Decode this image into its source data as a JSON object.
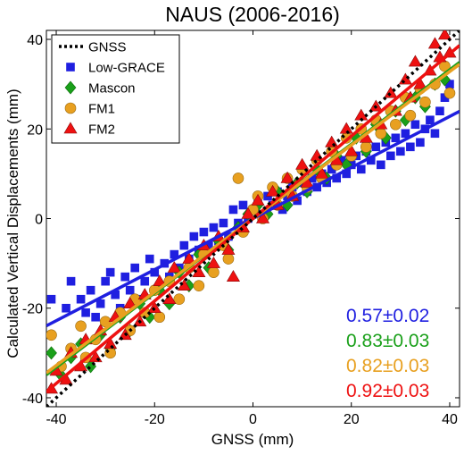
{
  "chart_data": {
    "type": "scatter",
    "title": "NAUS (2006-2016)",
    "xlabel": "GNSS (mm)",
    "ylabel": "Calculated Vertical Displacements (mm)",
    "xlim": [
      -42,
      42
    ],
    "ylim": [
      -42,
      42
    ],
    "xticks": [
      -40,
      -20,
      0,
      20,
      40
    ],
    "yticks": [
      -40,
      -20,
      0,
      20,
      40
    ],
    "xtick_labels": [
      "-40",
      "-20",
      "0",
      "20",
      "40"
    ],
    "ytick_labels": [
      "-40",
      "-20",
      "0",
      "20",
      "40"
    ],
    "grid": false,
    "legend_position": "top-left",
    "legend": [
      {
        "label": "GNSS",
        "marker": "dotted-line",
        "color": "#000000"
      },
      {
        "label": "Low-GRACE",
        "marker": "square",
        "color": "#1f1fe0"
      },
      {
        "label": "Mascon",
        "marker": "diamond",
        "color": "#1aa01a"
      },
      {
        "label": "FM1",
        "marker": "circle",
        "color": "#e8a020"
      },
      {
        "label": "FM2",
        "marker": "triangle",
        "color": "#ee1111"
      }
    ],
    "reference_line": {
      "name": "GNSS",
      "slope": 1,
      "intercept": 0,
      "color": "#000000"
    },
    "series": [
      {
        "name": "Low-GRACE",
        "marker": "square",
        "color": "#1f1fe0",
        "edge": "#1f1fe0",
        "fit": {
          "slope": 0.57,
          "intercept": 0
        },
        "points": [
          [
            -41,
            -18
          ],
          [
            -38,
            -20
          ],
          [
            -37,
            -14
          ],
          [
            -35,
            -18
          ],
          [
            -34,
            -21
          ],
          [
            -33,
            -16
          ],
          [
            -32,
            -22
          ],
          [
            -31,
            -19
          ],
          [
            -30,
            -14
          ],
          [
            -29,
            -12
          ],
          [
            -28,
            -17
          ],
          [
            -27,
            -20
          ],
          [
            -26,
            -13
          ],
          [
            -25,
            -16
          ],
          [
            -24,
            -11
          ],
          [
            -23,
            -18
          ],
          [
            -22,
            -14
          ],
          [
            -21,
            -9
          ],
          [
            -20,
            -12
          ],
          [
            -19,
            -15
          ],
          [
            -18,
            -10
          ],
          [
            -17,
            -13
          ],
          [
            -16,
            -8
          ],
          [
            -15,
            -11
          ],
          [
            -14,
            -6
          ],
          [
            -13,
            -9
          ],
          [
            -12,
            -4
          ],
          [
            -11,
            -7
          ],
          [
            -10,
            -3
          ],
          [
            -9,
            -6
          ],
          [
            -8,
            -2
          ],
          [
            -7,
            -5
          ],
          [
            -6,
            -1
          ],
          [
            -5,
            -4
          ],
          [
            -4,
            2
          ],
          [
            -3,
            -1
          ],
          [
            -2,
            3
          ],
          [
            -1,
            0
          ],
          [
            0,
            2
          ],
          [
            1,
            4
          ],
          [
            2,
            1
          ],
          [
            3,
            5
          ],
          [
            4,
            3
          ],
          [
            5,
            6
          ],
          [
            6,
            2
          ],
          [
            7,
            5
          ],
          [
            8,
            7
          ],
          [
            9,
            4
          ],
          [
            10,
            8
          ],
          [
            11,
            6
          ],
          [
            12,
            9
          ],
          [
            13,
            7
          ],
          [
            14,
            10
          ],
          [
            15,
            8
          ],
          [
            16,
            11
          ],
          [
            17,
            9
          ],
          [
            18,
            13
          ],
          [
            19,
            10
          ],
          [
            20,
            12
          ],
          [
            21,
            14
          ],
          [
            22,
            11
          ],
          [
            23,
            15
          ],
          [
            24,
            13
          ],
          [
            25,
            16
          ],
          [
            26,
            12
          ],
          [
            27,
            17
          ],
          [
            28,
            14
          ],
          [
            29,
            18
          ],
          [
            30,
            15
          ],
          [
            31,
            19
          ],
          [
            32,
            16
          ],
          [
            33,
            21
          ],
          [
            34,
            17
          ],
          [
            35,
            20
          ],
          [
            36,
            22
          ],
          [
            37,
            19
          ],
          [
            38,
            24
          ],
          [
            39,
            27
          ],
          [
            40,
            30
          ]
        ]
      },
      {
        "name": "Mascon",
        "marker": "diamond",
        "color": "#1aa01a",
        "edge": "#0c6f0c",
        "fit": {
          "slope": 0.83,
          "intercept": 0
        },
        "points": [
          [
            -41,
            -30
          ],
          [
            -39,
            -35
          ],
          [
            -37,
            -31
          ],
          [
            -35,
            -28
          ],
          [
            -33,
            -33
          ],
          [
            -31,
            -26
          ],
          [
            -29,
            -29
          ],
          [
            -27,
            -22
          ],
          [
            -25,
            -25
          ],
          [
            -23,
            -19
          ],
          [
            -21,
            -22
          ],
          [
            -19,
            -16
          ],
          [
            -17,
            -19
          ],
          [
            -15,
            -12
          ],
          [
            -13,
            -15
          ],
          [
            -11,
            -8
          ],
          [
            -9,
            -11
          ],
          [
            -7,
            -5
          ],
          [
            -5,
            -7
          ],
          [
            -3,
            -2
          ],
          [
            -1,
            1
          ],
          [
            1,
            3
          ],
          [
            3,
            1
          ],
          [
            5,
            6
          ],
          [
            7,
            3
          ],
          [
            9,
            8
          ],
          [
            11,
            6
          ],
          [
            13,
            11
          ],
          [
            15,
            9
          ],
          [
            17,
            14
          ],
          [
            19,
            12
          ],
          [
            21,
            18
          ],
          [
            23,
            15
          ],
          [
            25,
            21
          ],
          [
            27,
            18
          ],
          [
            29,
            24
          ],
          [
            31,
            22
          ],
          [
            33,
            27
          ],
          [
            35,
            25
          ],
          [
            37,
            30
          ],
          [
            39,
            31
          ]
        ]
      },
      {
        "name": "FM1",
        "marker": "circle",
        "color": "#e8a020",
        "edge": "#9a6a10",
        "fit": {
          "slope": 0.82,
          "intercept": 0
        },
        "points": [
          [
            -41,
            -26
          ],
          [
            -39,
            -33
          ],
          [
            -37,
            -29
          ],
          [
            -35,
            -24
          ],
          [
            -34,
            -31
          ],
          [
            -32,
            -27
          ],
          [
            -30,
            -23
          ],
          [
            -29,
            -30
          ],
          [
            -27,
            -21
          ],
          [
            -25,
            -25
          ],
          [
            -24,
            -18
          ],
          [
            -22,
            -21
          ],
          [
            -20,
            -16
          ],
          [
            -19,
            -22
          ],
          [
            -17,
            -14
          ],
          [
            -15,
            -18
          ],
          [
            -13,
            -11
          ],
          [
            -11,
            -15
          ],
          [
            -10,
            -8
          ],
          [
            -8,
            -12
          ],
          [
            -6,
            -6
          ],
          [
            -5,
            -9
          ],
          [
            -3,
            9
          ],
          [
            -2,
            -3
          ],
          [
            0,
            2
          ],
          [
            1,
            5
          ],
          [
            2,
            0
          ],
          [
            4,
            7
          ],
          [
            5,
            3
          ],
          [
            7,
            9
          ],
          [
            8,
            5
          ],
          [
            10,
            11
          ],
          [
            11,
            7
          ],
          [
            13,
            13
          ],
          [
            14,
            9
          ],
          [
            16,
            15
          ],
          [
            17,
            12
          ],
          [
            19,
            18
          ],
          [
            20,
            14
          ],
          [
            22,
            20
          ],
          [
            23,
            16
          ],
          [
            25,
            22
          ],
          [
            26,
            19
          ],
          [
            28,
            24
          ],
          [
            29,
            21
          ],
          [
            31,
            27
          ],
          [
            32,
            23
          ],
          [
            34,
            29
          ],
          [
            35,
            26
          ],
          [
            37,
            30
          ],
          [
            39,
            34
          ],
          [
            40,
            28
          ]
        ]
      },
      {
        "name": "FM2",
        "marker": "triangle",
        "color": "#ee1111",
        "edge": "#8a0a0a",
        "fit": {
          "slope": 0.92,
          "intercept": 0
        },
        "points": [
          [
            -41,
            -38
          ],
          [
            -40,
            -34
          ],
          [
            -38,
            -36
          ],
          [
            -37,
            -30
          ],
          [
            -35,
            -33
          ],
          [
            -34,
            -27
          ],
          [
            -32,
            -31
          ],
          [
            -31,
            -25
          ],
          [
            -29,
            -28
          ],
          [
            -28,
            -22
          ],
          [
            -26,
            -26
          ],
          [
            -25,
            -19
          ],
          [
            -23,
            -23
          ],
          [
            -22,
            -17
          ],
          [
            -20,
            -20
          ],
          [
            -19,
            -14
          ],
          [
            -17,
            -18
          ],
          [
            -16,
            -11
          ],
          [
            -14,
            -15
          ],
          [
            -13,
            -9
          ],
          [
            -11,
            -12
          ],
          [
            -10,
            -6
          ],
          [
            -8,
            -10
          ],
          [
            -7,
            -4
          ],
          [
            -5,
            -7
          ],
          [
            -4,
            -13
          ],
          [
            -2,
            -2
          ],
          [
            -1,
            1
          ],
          [
            1,
            4
          ],
          [
            2,
            0
          ],
          [
            4,
            6
          ],
          [
            5,
            3
          ],
          [
            7,
            9
          ],
          [
            8,
            5
          ],
          [
            10,
            12
          ],
          [
            11,
            8
          ],
          [
            13,
            14
          ],
          [
            14,
            10
          ],
          [
            16,
            17
          ],
          [
            17,
            13
          ],
          [
            19,
            20
          ],
          [
            20,
            15
          ],
          [
            22,
            23
          ],
          [
            23,
            18
          ],
          [
            25,
            25
          ],
          [
            26,
            21
          ],
          [
            28,
            28
          ],
          [
            29,
            24
          ],
          [
            31,
            31
          ],
          [
            32,
            27
          ],
          [
            33,
            35
          ],
          [
            34,
            30
          ],
          [
            36,
            33
          ],
          [
            37,
            39
          ],
          [
            38,
            36
          ],
          [
            39,
            41
          ],
          [
            40,
            37
          ]
        ]
      }
    ],
    "annotations": [
      {
        "text": "0.57±0.02",
        "color": "#1f1fe0"
      },
      {
        "text": "0.83±0.03",
        "color": "#1aa01a"
      },
      {
        "text": "0.82±0.03",
        "color": "#e8a020"
      },
      {
        "text": "0.92±0.03",
        "color": "#ee1111"
      }
    ]
  }
}
